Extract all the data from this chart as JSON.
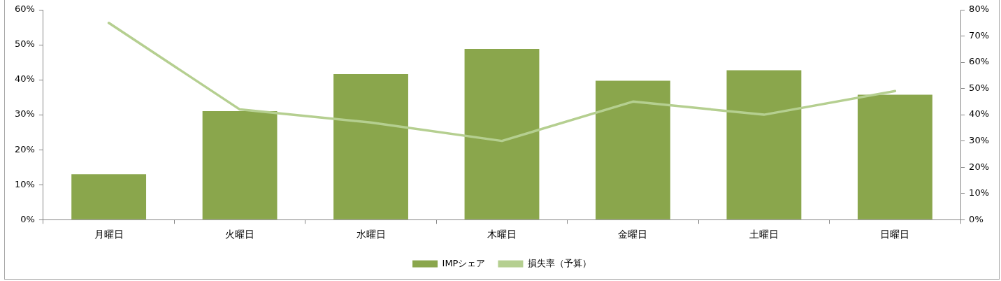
{
  "chart_data": {
    "type": "bar",
    "categories": [
      "月曜日",
      "火曜日",
      "水曜日",
      "木曜日",
      "金曜日",
      "土曜日",
      "日曜日"
    ],
    "series": [
      {
        "name": "IMPシェア",
        "color": "#8aa64c",
        "values": [
          13,
          31,
          41.6,
          48.8,
          39.7,
          42.7,
          35.7
        ]
      },
      {
        "name": "損失率（予算）",
        "type": "line",
        "axis": "y2",
        "color": "#b5cf90",
        "values": [
          75,
          42,
          37,
          30,
          45,
          40,
          49
        ]
      }
    ],
    "ylim": [
      0,
      60
    ],
    "yticks": [
      {
        "value": 0,
        "label": "0%"
      },
      {
        "value": 10,
        "label": "10%"
      },
      {
        "value": 20,
        "label": "20%"
      },
      {
        "value": 30,
        "label": "30%"
      },
      {
        "value": 40,
        "label": "40%"
      },
      {
        "value": 50,
        "label": "50%"
      },
      {
        "value": 60,
        "label": "60%"
      }
    ],
    "y2lim": [
      0,
      80
    ],
    "y2ticks": [
      {
        "value": 0,
        "label": "0%"
      },
      {
        "value": 10,
        "label": "10%"
      },
      {
        "value": 20,
        "label": "20%"
      },
      {
        "value": 30,
        "label": "30%"
      },
      {
        "value": 40,
        "label": "40%"
      },
      {
        "value": 50,
        "label": "50%"
      },
      {
        "value": 60,
        "label": "60%"
      },
      {
        "value": 70,
        "label": "70%"
      },
      {
        "value": 80,
        "label": "80%"
      }
    ],
    "grid": false,
    "legend": "bottom",
    "marker": "none",
    "line_style": "solid"
  }
}
